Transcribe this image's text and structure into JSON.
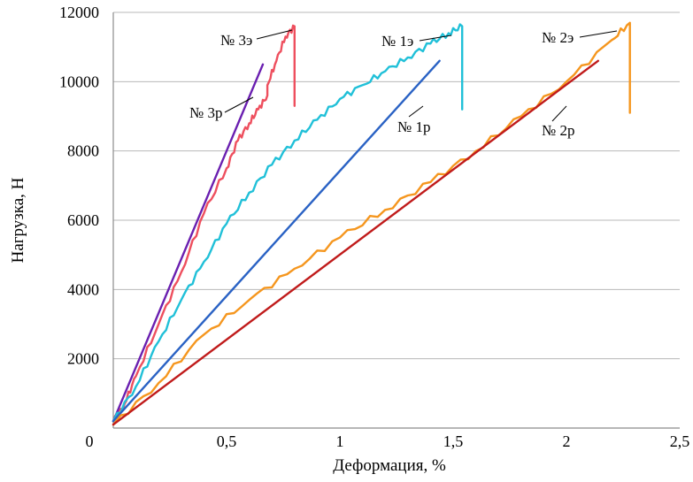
{
  "chart_data": {
    "type": "line",
    "xlabel": "Деформация, %",
    "ylabel": "Нагрузка, Н",
    "xlim": [
      0,
      2.5
    ],
    "ylim": [
      0,
      12000
    ],
    "x_ticks": [
      {
        "value": 0,
        "label": "0"
      },
      {
        "value": 0.5,
        "label": "0,5"
      },
      {
        "value": 1,
        "label": "1"
      },
      {
        "value": 1.5,
        "label": "1,5"
      },
      {
        "value": 2,
        "label": "2"
      },
      {
        "value": 2.5,
        "label": "2,5"
      }
    ],
    "y_ticks": [
      {
        "value": 2000,
        "label": "2000"
      },
      {
        "value": 4000,
        "label": "4000"
      },
      {
        "value": 6000,
        "label": "6000"
      },
      {
        "value": 8000,
        "label": "8000"
      },
      {
        "value": 10000,
        "label": "10000"
      },
      {
        "value": 12000,
        "label": "12000"
      }
    ],
    "grid": "horizontal",
    "series": [
      {
        "name": "№ 3э",
        "color": "#ee4f5e",
        "kind": "experimental",
        "points": [
          [
            0.0,
            200
          ],
          [
            0.05,
            700
          ],
          [
            0.1,
            1500
          ],
          [
            0.2,
            3000
          ],
          [
            0.3,
            4500
          ],
          [
            0.4,
            6200
          ],
          [
            0.5,
            7500
          ],
          [
            0.55,
            8300
          ],
          [
            0.6,
            8800
          ],
          [
            0.64,
            9200
          ],
          [
            0.68,
            9600
          ],
          [
            0.68,
            9900
          ],
          [
            0.72,
            10600
          ],
          [
            0.76,
            11300
          ],
          [
            0.8,
            11600
          ],
          [
            0.8,
            9300
          ]
        ]
      },
      {
        "name": "№ 3р",
        "color": "#6a1fb0",
        "kind": "calculated",
        "points": [
          [
            0.0,
            200
          ],
          [
            0.66,
            10500
          ]
        ]
      },
      {
        "name": "№ 1э",
        "color": "#20c0d8",
        "kind": "experimental",
        "points": [
          [
            0.0,
            200
          ],
          [
            0.1,
            1200
          ],
          [
            0.2,
            2500
          ],
          [
            0.3,
            3700
          ],
          [
            0.4,
            4800
          ],
          [
            0.5,
            5900
          ],
          [
            0.6,
            6800
          ],
          [
            0.7,
            7600
          ],
          [
            0.8,
            8300
          ],
          [
            0.9,
            8900
          ],
          [
            1.0,
            9500
          ],
          [
            1.1,
            9900
          ],
          [
            1.2,
            10300
          ],
          [
            1.3,
            10700
          ],
          [
            1.4,
            11100
          ],
          [
            1.48,
            11400
          ],
          [
            1.54,
            11600
          ],
          [
            1.54,
            9200
          ]
        ]
      },
      {
        "name": "№ 1р",
        "color": "#2a62c4",
        "kind": "calculated",
        "points": [
          [
            0.0,
            200
          ],
          [
            1.44,
            10600
          ]
        ]
      },
      {
        "name": "№ 2э",
        "color": "#f5961e",
        "kind": "experimental",
        "points": [
          [
            0.0,
            100
          ],
          [
            0.2,
            1300
          ],
          [
            0.4,
            2700
          ],
          [
            0.6,
            3700
          ],
          [
            0.8,
            4600
          ],
          [
            1.0,
            5500
          ],
          [
            1.2,
            6300
          ],
          [
            1.4,
            7100
          ],
          [
            1.6,
            8000
          ],
          [
            1.8,
            9000
          ],
          [
            2.0,
            10000
          ],
          [
            2.2,
            11200
          ],
          [
            2.28,
            11700
          ],
          [
            2.28,
            9100
          ]
        ]
      },
      {
        "name": "№ 2р",
        "color": "#c01b1b",
        "kind": "calculated",
        "points": [
          [
            0.0,
            100
          ],
          [
            2.14,
            10600
          ]
        ]
      }
    ]
  }
}
